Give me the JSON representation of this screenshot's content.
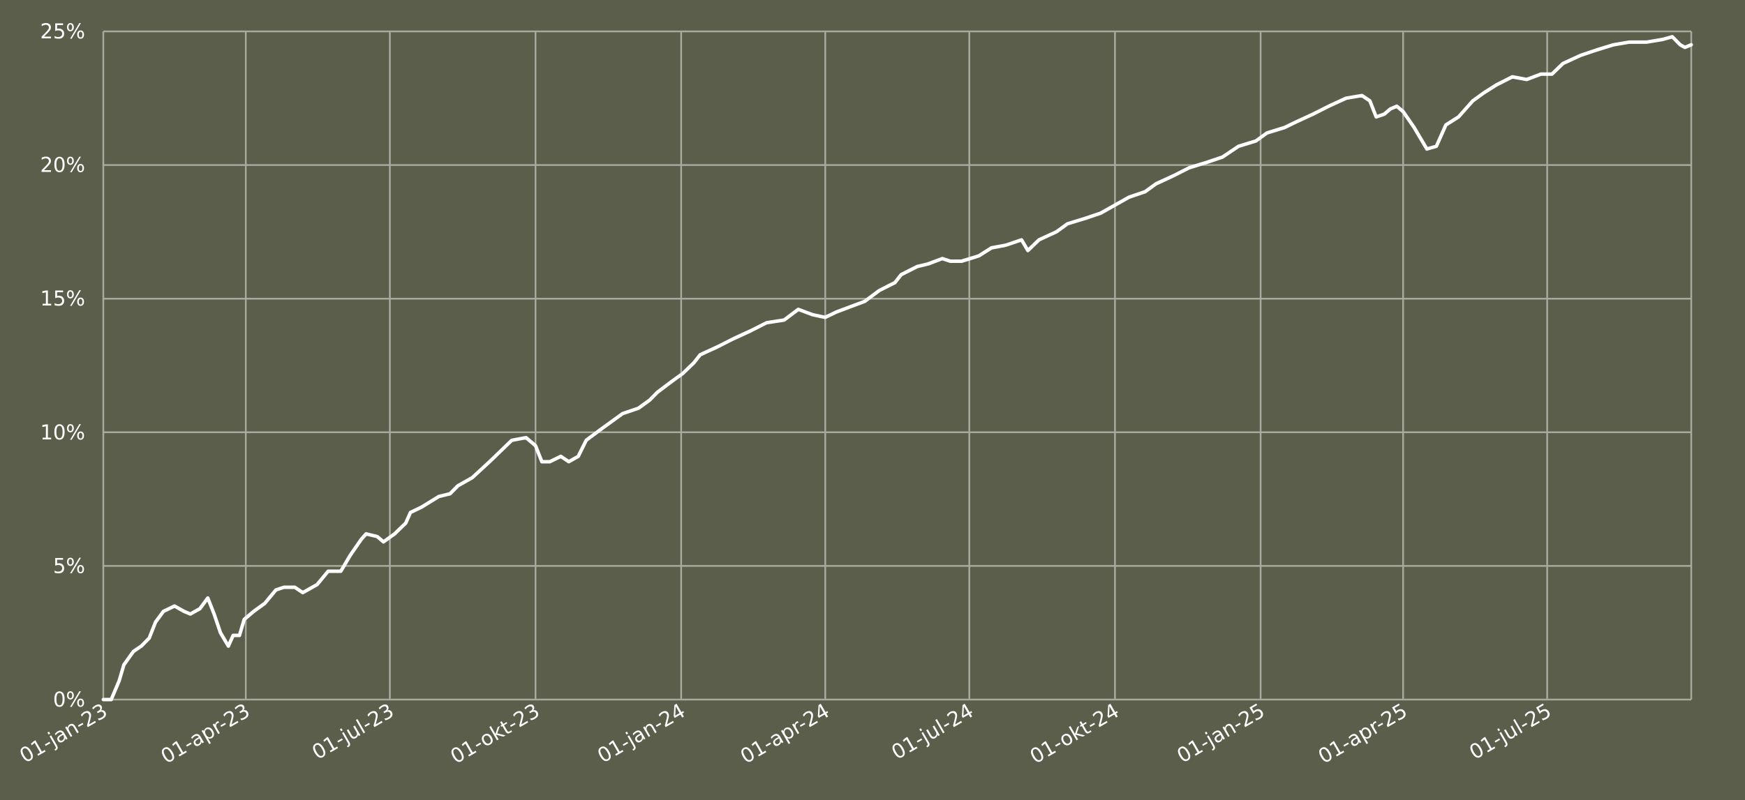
{
  "chart_data": {
    "type": "line",
    "xlim": [
      "2023-01-01",
      "2025-09-30"
    ],
    "xticks": [
      {
        "value": "2023-01-01",
        "label": "01-jan-23"
      },
      {
        "value": "2023-04-01",
        "label": "01-apr-23"
      },
      {
        "value": "2023-07-01",
        "label": "01-jul-23"
      },
      {
        "value": "2023-10-01",
        "label": "01-okt-23"
      },
      {
        "value": "2024-01-01",
        "label": "01-jan-24"
      },
      {
        "value": "2024-04-01",
        "label": "01-apr-24"
      },
      {
        "value": "2024-07-01",
        "label": "01-jul-24"
      },
      {
        "value": "2024-10-01",
        "label": "01-okt-24"
      },
      {
        "value": "2025-01-01",
        "label": "01-jan-25"
      },
      {
        "value": "2025-04-01",
        "label": "01-apr-25"
      },
      {
        "value": "2025-07-01",
        "label": "01-jul-25"
      }
    ],
    "ylim": [
      0,
      25
    ],
    "yticks": [
      {
        "value": 0,
        "label": "0%"
      },
      {
        "value": 5,
        "label": "5%"
      },
      {
        "value": 10,
        "label": "10%"
      },
      {
        "value": 15,
        "label": "15%"
      },
      {
        "value": 20,
        "label": "20%"
      },
      {
        "value": 25,
        "label": "25%"
      }
    ],
    "grid": true,
    "x": [
      "2023-01-01",
      "2023-01-06",
      "2023-01-11",
      "2023-01-14",
      "2023-01-20",
      "2023-01-25",
      "2023-01-30",
      "2023-02-03",
      "2023-02-08",
      "2023-02-15",
      "2023-02-21",
      "2023-02-25",
      "2023-03-03",
      "2023-03-08",
      "2023-03-12",
      "2023-03-16",
      "2023-03-21",
      "2023-03-24",
      "2023-03-28",
      "2023-03-31",
      "2023-04-06",
      "2023-04-13",
      "2023-04-20",
      "2023-04-25",
      "2023-05-02",
      "2023-05-07",
      "2023-05-16",
      "2023-05-23",
      "2023-05-31",
      "2023-06-06",
      "2023-06-13",
      "2023-06-16",
      "2023-06-23",
      "2023-06-27",
      "2023-07-04",
      "2023-07-11",
      "2023-07-14",
      "2023-07-21",
      "2023-08-01",
      "2023-08-08",
      "2023-08-13",
      "2023-08-22",
      "2023-09-02",
      "2023-09-09",
      "2023-09-16",
      "2023-09-25",
      "2023-10-01",
      "2023-10-05",
      "2023-10-10",
      "2023-10-17",
      "2023-10-22",
      "2023-10-28",
      "2023-11-02",
      "2023-11-11",
      "2023-11-18",
      "2023-11-25",
      "2023-12-05",
      "2023-12-12",
      "2023-12-17",
      "2023-12-26",
      "2024-01-02",
      "2024-01-09",
      "2024-01-13",
      "2024-01-24",
      "2024-02-03",
      "2024-02-14",
      "2024-02-24",
      "2024-03-06",
      "2024-03-15",
      "2024-03-24",
      "2024-04-01",
      "2024-04-08",
      "2024-04-17",
      "2024-04-26",
      "2024-05-05",
      "2024-05-15",
      "2024-05-19",
      "2024-05-29",
      "2024-06-05",
      "2024-06-14",
      "2024-06-19",
      "2024-06-26",
      "2024-07-07",
      "2024-07-15",
      "2024-07-24",
      "2024-08-03",
      "2024-08-07",
      "2024-08-14",
      "2024-08-25",
      "2024-09-01",
      "2024-09-12",
      "2024-09-22",
      "2024-10-01",
      "2024-10-10",
      "2024-10-20",
      "2024-10-27",
      "2024-11-07",
      "2024-11-17",
      "2024-11-28",
      "2024-12-08",
      "2024-12-18",
      "2024-12-29",
      "2025-01-05",
      "2025-01-16",
      "2025-01-23",
      "2025-02-03",
      "2025-02-13",
      "2025-02-24",
      "2025-03-06",
      "2025-03-11",
      "2025-03-15",
      "2025-03-20",
      "2025-03-24",
      "2025-03-28",
      "2025-04-01",
      "2025-04-08",
      "2025-04-16",
      "2025-04-22",
      "2025-04-28",
      "2025-05-06",
      "2025-05-15",
      "2025-05-22",
      "2025-05-30",
      "2025-06-09",
      "2025-06-18",
      "2025-06-27",
      "2025-07-04",
      "2025-07-11",
      "2025-07-22",
      "2025-08-01",
      "2025-08-12",
      "2025-08-22",
      "2025-09-02",
      "2025-09-12",
      "2025-09-18",
      "2025-09-23",
      "2025-09-26",
      "2025-09-30"
    ],
    "series": [
      {
        "color": "#ffffff",
        "values": [
          0,
          0,
          0.7,
          1.3,
          1.8,
          2.0,
          2.3,
          2.9,
          3.3,
          3.5,
          3.3,
          3.2,
          3.4,
          3.8,
          3.2,
          2.5,
          2.0,
          2.4,
          2.4,
          3.0,
          3.3,
          3.6,
          4.1,
          4.2,
          4.2,
          4.0,
          4.3,
          4.8,
          4.8,
          5.4,
          6.0,
          6.2,
          6.1,
          5.9,
          6.2,
          6.6,
          7.0,
          7.2,
          7.6,
          7.7,
          8.0,
          8.3,
          8.9,
          9.3,
          9.7,
          9.8,
          9.5,
          8.9,
          8.9,
          9.1,
          8.9,
          9.1,
          9.7,
          10.1,
          10.4,
          10.7,
          10.9,
          11.2,
          11.5,
          11.9,
          12.2,
          12.6,
          12.9,
          13.2,
          13.5,
          13.8,
          14.1,
          14.2,
          14.6,
          14.4,
          14.3,
          14.5,
          14.7,
          14.9,
          15.3,
          15.6,
          15.9,
          16.2,
          16.3,
          16.5,
          16.4,
          16.4,
          16.6,
          16.9,
          17.0,
          17.2,
          16.8,
          17.2,
          17.5,
          17.8,
          18.0,
          18.2,
          18.5,
          18.8,
          19.0,
          19.3,
          19.6,
          19.9,
          20.1,
          20.3,
          20.7,
          20.9,
          21.2,
          21.4,
          21.6,
          21.9,
          22.2,
          22.5,
          22.6,
          22.4,
          21.8,
          21.9,
          22.1,
          22.2,
          22.0,
          21.4,
          20.6,
          20.7,
          21.5,
          21.8,
          22.4,
          22.7,
          23.0,
          23.3,
          23.2,
          23.4,
          23.4,
          23.8,
          24.1,
          24.3,
          24.5,
          24.6,
          24.6,
          24.7,
          24.8,
          24.5,
          24.4,
          24.5
        ]
      }
    ]
  }
}
